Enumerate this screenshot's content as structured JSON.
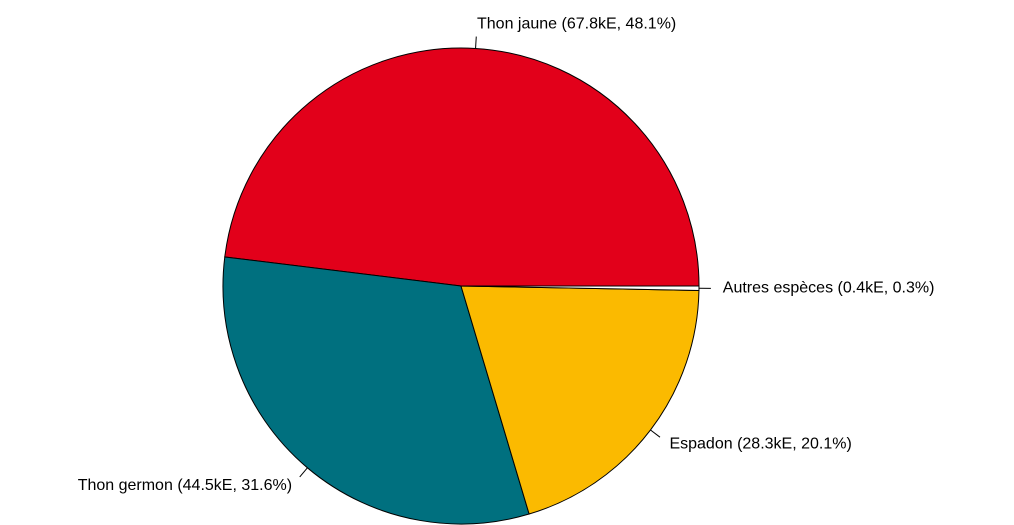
{
  "chart_data": {
    "type": "pie",
    "categories": [
      "Thon jaune",
      "Thon germon",
      "Espadon",
      "Autres espèces"
    ],
    "values": [
      48.1,
      31.6,
      20.1,
      0.3
    ],
    "value_labels": [
      "(67.8kE, 48.1%)",
      "(44.5kE, 31.6%)",
      "(28.3kE, 20.1%)",
      "(0.4kE, 0.3%)"
    ],
    "colors": [
      "#e2001a",
      "#00707f",
      "#fbba00",
      "#ffffff"
    ]
  }
}
